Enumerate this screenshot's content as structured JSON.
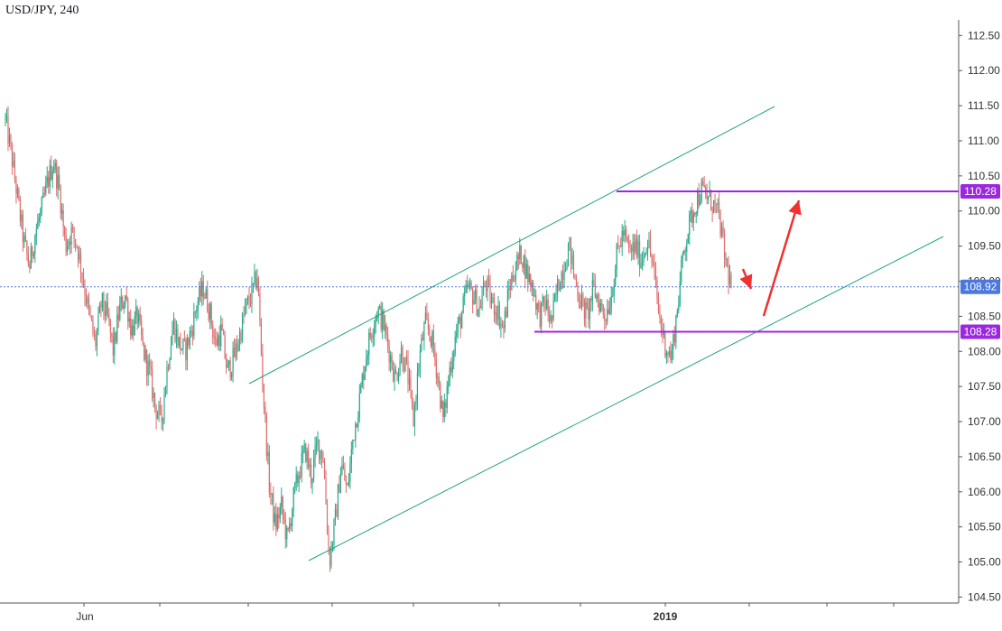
{
  "chart_data": {
    "type": "candlestick",
    "title": "USD/JPY, 240",
    "y_axis": {
      "side": "right",
      "ticks": [
        "104.50",
        "105.00",
        "105.50",
        "106.00",
        "106.50",
        "107.00",
        "107.50",
        "108.00",
        "108.50",
        "109.00",
        "109.50",
        "110.00",
        "110.50",
        "111.00",
        "111.50",
        "112.00",
        "112.50"
      ],
      "ylim": [
        104.3,
        112.62
      ]
    },
    "x_axis": {
      "labels": [
        {
          "text": "Jun",
          "date": "2018-06"
        },
        {
          "text": "2019",
          "date": "2019-01"
        }
      ]
    },
    "price_labels": [
      {
        "value": "110.28",
        "color": "#9c27e0"
      },
      {
        "value": "108.92",
        "color": "#4a78e0"
      },
      {
        "value": "108.28",
        "color": "#9c27e0"
      }
    ],
    "current_price": 108.92,
    "horizontal_levels": [
      {
        "name": "resistance",
        "value": 110.28,
        "color": "#9c27e0"
      },
      {
        "name": "support",
        "value": 108.28,
        "color": "#9c27e0"
      }
    ],
    "channel_color": "#20a37f",
    "arrow_color": "#f0312f",
    "up_color": "#26a98a",
    "down_color": "#e06c6c",
    "price_path": [
      111.3,
      110.8,
      110.2,
      109.6,
      109.2,
      109.7,
      110.0,
      110.4,
      110.7,
      110.3,
      109.5,
      109.7,
      109.5,
      109.0,
      108.5,
      108.1,
      108.7,
      108.5,
      108.0,
      108.6,
      108.8,
      108.3,
      108.5,
      108.0,
      107.7,
      107.2,
      107.0,
      107.8,
      108.4,
      108.1,
      108.0,
      108.3,
      108.7,
      108.9,
      108.6,
      108.1,
      108.3,
      107.7,
      107.9,
      108.2,
      108.6,
      108.8,
      109.1,
      107.4,
      106.1,
      105.5,
      105.8,
      105.3,
      105.9,
      106.3,
      106.6,
      106.2,
      106.7,
      106.5,
      105.0,
      105.6,
      106.4,
      106.0,
      106.8,
      107.3,
      107.9,
      108.3,
      108.6,
      108.4,
      108.0,
      107.6,
      108.0,
      107.7,
      107.0,
      107.9,
      108.4,
      108.2,
      107.7,
      107.0,
      107.7,
      108.2,
      108.5,
      108.9,
      108.8,
      108.6,
      109.0,
      108.7,
      108.6,
      108.3,
      108.9,
      109.2,
      109.4,
      109.1,
      108.9,
      108.5,
      108.7,
      108.4,
      108.9,
      109.2,
      109.5,
      109.0,
      108.7,
      108.5,
      108.9,
      108.7,
      108.5,
      108.8,
      109.4,
      109.7,
      109.4,
      109.5,
      109.3,
      109.6,
      109.2,
      108.5,
      108.1,
      107.9,
      108.6,
      109.4,
      109.8,
      110.1,
      110.3,
      110.2,
      110.1,
      109.9,
      109.3,
      108.92
    ]
  }
}
